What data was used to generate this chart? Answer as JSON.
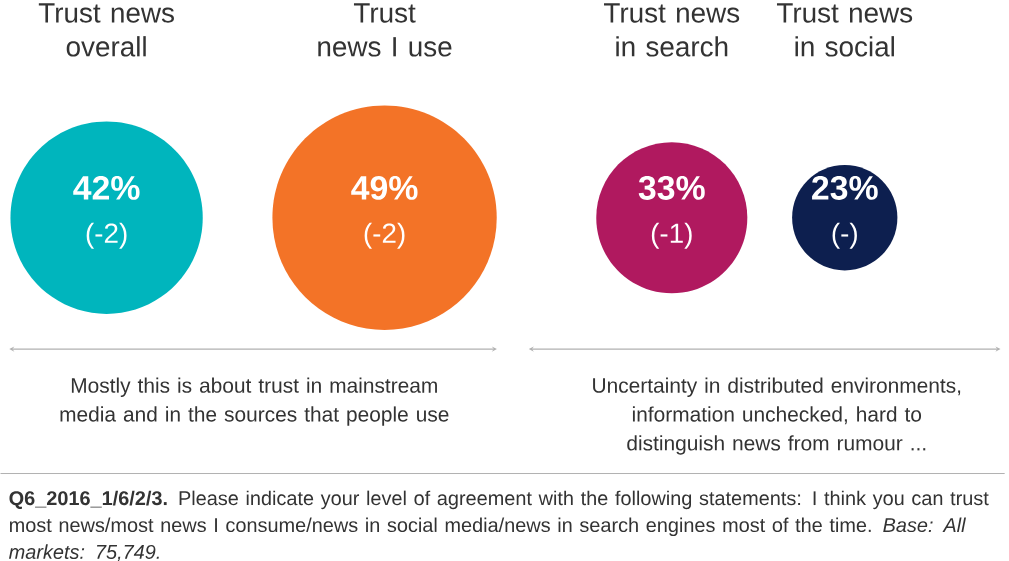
{
  "chart_data": {
    "type": "other",
    "categories": [
      "Trust news overall",
      "Trust news I use",
      "Trust news in search",
      "Trust news in social"
    ],
    "values": [
      42,
      49,
      33,
      23
    ],
    "value_labels": [
      "42%",
      "49%",
      "33%",
      "23%"
    ],
    "colors": [
      "#00b5bd",
      "#f37327",
      "#b0195f",
      "#0d1f4f"
    ],
    "annotations": [
      "(-2)",
      "(-2)",
      "(-1)",
      "(-)",
      "Mostly this is about trust in mainstream media and in the sources that people use",
      "Uncertainty in distributed environments, information unchecked, hard to distinguish news from rumour ...",
      "**Q6_2016_1/6/2/3.** Please indicate your level of agreement with the following statements: I think you can trust most news/most news I consume/news in social media/news in search engines most of the time. *Base: All markets: 75,749.*"
    ]
  }
}
